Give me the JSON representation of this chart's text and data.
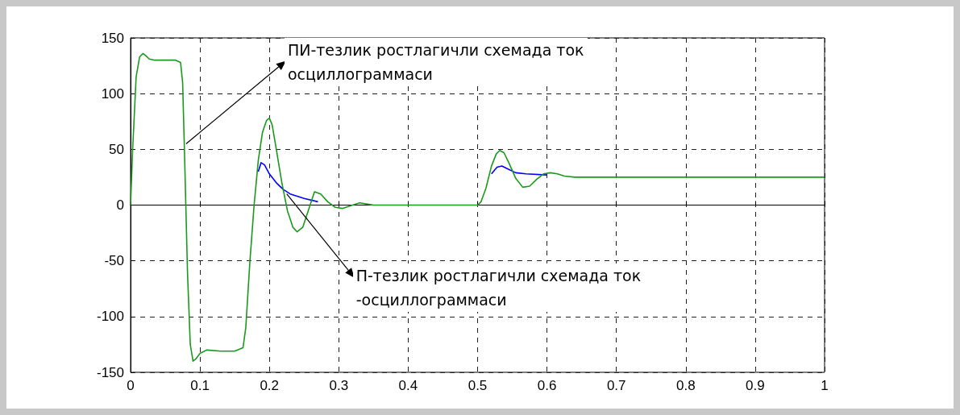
{
  "chart_data": {
    "type": "line",
    "series": [
      {
        "color": "#0000ff",
        "x": [
          0.184,
          0.188,
          0.193,
          0.2,
          0.21,
          0.22,
          0.23,
          0.25,
          0.27,
          0.4,
          0.52,
          0.528,
          0.535,
          0.545,
          0.555,
          0.57,
          0.6
        ],
        "values": [
          30,
          38,
          36,
          28,
          20,
          14,
          10,
          6,
          3,
          null,
          28,
          34,
          35,
          32,
          29,
          28,
          27
        ]
      },
      {
        "color": "#1a9a1a",
        "x": [
          0,
          0.003,
          0.008,
          0.013,
          0.018,
          0.022,
          0.027,
          0.035,
          0.05,
          0.065,
          0.072,
          0.075,
          0.078,
          0.082,
          0.086,
          0.09,
          0.094,
          0.1,
          0.11,
          0.13,
          0.15,
          0.162,
          0.166,
          0.172,
          0.178,
          0.184,
          0.19,
          0.196,
          0.2,
          0.204,
          0.21,
          0.218,
          0.226,
          0.234,
          0.24,
          0.248,
          0.256,
          0.265,
          0.274,
          0.284,
          0.295,
          0.305,
          0.32,
          0.33,
          0.34,
          0.35,
          0.4,
          0.5,
          0.505,
          0.512,
          0.52,
          0.527,
          0.532,
          0.538,
          0.545,
          0.555,
          0.565,
          0.575,
          0.585,
          0.595,
          0.605,
          0.615,
          0.625,
          0.64,
          0.66,
          0.7,
          1
        ],
        "values": [
          0,
          50,
          115,
          133,
          136,
          134,
          131,
          130,
          130,
          130,
          128,
          110,
          40,
          -60,
          -125,
          -140,
          -138,
          -133,
          -130,
          -131,
          -131,
          -128,
          -110,
          -50,
          0,
          40,
          65,
          76,
          78,
          72,
          50,
          20,
          -5,
          -20,
          -24,
          -20,
          -5,
          12,
          10,
          3,
          -2,
          -3,
          0,
          2,
          1,
          0,
          0,
          0,
          3,
          15,
          35,
          46,
          49,
          47,
          38,
          24,
          16,
          17,
          23,
          28,
          29,
          28,
          26,
          25,
          25,
          25,
          25
        ]
      }
    ],
    "xlim": [
      0,
      1
    ],
    "xticks": [
      0,
      0.1,
      0.2,
      0.3,
      0.4,
      0.5,
      0.6,
      0.7,
      0.8,
      0.9,
      1
    ],
    "ylim": [
      -150,
      150
    ],
    "yticks": [
      -150,
      -100,
      -50,
      0,
      50,
      100,
      150
    ],
    "grid": true,
    "marker": "none",
    "line_style": "solid",
    "annotations": [
      {
        "text": "ПИ-тезлик ростлагичли схемада ток\nосциллограммаси",
        "x": 0.08,
        "y": 55
      },
      {
        "text": "П-тезлик ростлагичли схемада ток\n-осциллограммаси",
        "x": 0.225,
        "y": 10
      }
    ]
  }
}
